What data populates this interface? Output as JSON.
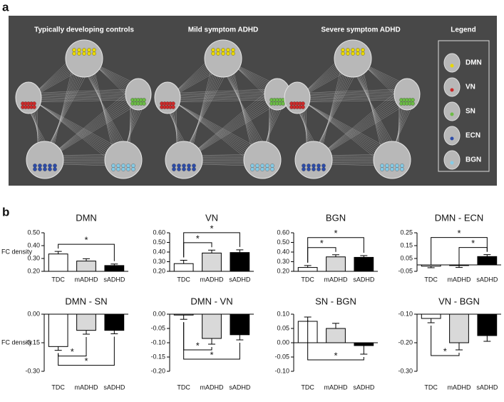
{
  "panel_a": {
    "label": "a",
    "titles": [
      "Typically developing controls",
      "Mild symptom ADHD",
      "Severe symptom ADHD"
    ],
    "legend": {
      "title": "Legend",
      "items": [
        "DMN",
        "VN",
        "SN",
        "ECN",
        "BGN"
      ]
    }
  },
  "panel_b": {
    "label": "b"
  },
  "chart_data": [
    {
      "type": "bar",
      "title": "DMN",
      "ylabel": "FC density",
      "categories": [
        "TDC",
        "mADHD",
        "sADHD"
      ],
      "values": [
        0.335,
        0.28,
        0.245
      ],
      "errors": [
        0.02,
        0.018,
        0.012
      ],
      "colors": [
        "#ffffff",
        "#d9d9d9",
        "#000000"
      ],
      "ylim": [
        0.2,
        0.5
      ],
      "yticks": [
        {
          "value": 0.2,
          "label": "0.20"
        },
        {
          "value": 0.3,
          "label": "0.30"
        },
        {
          "value": 0.4,
          "label": "0.40"
        },
        {
          "value": 0.5,
          "label": "0.50"
        }
      ],
      "significance": [
        {
          "pair": [
            0,
            2
          ],
          "label": "*"
        }
      ]
    },
    {
      "type": "bar",
      "title": "VN",
      "categories": [
        "TDC",
        "mADHD",
        "sADHD"
      ],
      "values": [
        0.28,
        0.39,
        0.395
      ],
      "errors": [
        0.035,
        0.03,
        0.028
      ],
      "colors": [
        "#ffffff",
        "#d9d9d9",
        "#000000"
      ],
      "ylim": [
        0.2,
        0.6
      ],
      "yticks": [
        {
          "value": 0.2,
          "label": "0.20"
        },
        {
          "value": 0.3,
          "label": "0.30"
        },
        {
          "value": 0.4,
          "label": "0.40"
        },
        {
          "value": 0.5,
          "label": "0.50"
        },
        {
          "value": 0.6,
          "label": "0.60"
        }
      ],
      "significance": [
        {
          "pair": [
            0,
            1
          ],
          "label": "*"
        },
        {
          "pair": [
            0,
            2
          ],
          "label": "*"
        }
      ]
    },
    {
      "type": "bar",
      "title": "BGN",
      "categories": [
        "TDC",
        "mADHD",
        "sADHD"
      ],
      "values": [
        0.24,
        0.35,
        0.345
      ],
      "errors": [
        0.02,
        0.022,
        0.018
      ],
      "colors": [
        "#ffffff",
        "#d9d9d9",
        "#000000"
      ],
      "ylim": [
        0.2,
        0.6
      ],
      "yticks": [
        {
          "value": 0.2,
          "label": "0.20"
        },
        {
          "value": 0.3,
          "label": "0.30"
        },
        {
          "value": 0.4,
          "label": "0.40"
        },
        {
          "value": 0.5,
          "label": "0.50"
        },
        {
          "value": 0.6,
          "label": "0.60"
        }
      ],
      "significance": [
        {
          "pair": [
            0,
            1
          ],
          "label": "*"
        },
        {
          "pair": [
            0,
            2
          ],
          "label": "*"
        }
      ]
    },
    {
      "type": "bar",
      "title": "DMN - ECN",
      "categories": [
        "TDC",
        "mADHD",
        "sADHD"
      ],
      "values": [
        -0.01,
        -0.005,
        0.065
      ],
      "errors": [
        0.012,
        0.015,
        0.015
      ],
      "colors": [
        "#ffffff",
        "#d9d9d9",
        "#000000"
      ],
      "ylim": [
        -0.05,
        0.25
      ],
      "yticks": [
        -0.05,
        0.05,
        0.15,
        0.25
      ],
      "significance": [
        {
          "pair": [
            1,
            2
          ],
          "label": "*"
        },
        {
          "pair": [
            0,
            2
          ],
          "label": "*"
        }
      ]
    },
    {
      "type": "bar",
      "title": "DMN - SN",
      "ylabel": "FC density",
      "categories": [
        "TDC",
        "mADHD",
        "sADHD"
      ],
      "values": [
        -0.17,
        -0.085,
        -0.085
      ],
      "errors": [
        0.02,
        0.02,
        0.018
      ],
      "colors": [
        "#ffffff",
        "#d9d9d9",
        "#000000"
      ],
      "ylim": [
        -0.3,
        0
      ],
      "yticks": [
        {
          "value": 0,
          "label": "0.00"
        },
        -0.15,
        {
          "value": -0.3,
          "label": "-0.30"
        }
      ],
      "significance": [
        {
          "pair": [
            0,
            1
          ],
          "label": "*"
        },
        {
          "pair": [
            0,
            2
          ],
          "label": "*"
        }
      ]
    },
    {
      "type": "bar",
      "title": "DMN - VN",
      "categories": [
        "TDC",
        "mADHD",
        "sADHD"
      ],
      "values": [
        -0.003,
        -0.085,
        -0.072
      ],
      "errors": [
        0.015,
        0.02,
        0.018
      ],
      "colors": [
        "#ffffff",
        "#d9d9d9",
        "#000000"
      ],
      "ylim": [
        -0.2,
        0
      ],
      "yticks": [
        {
          "value": 0,
          "label": "0.00"
        },
        -0.05,
        {
          "value": -0.1,
          "label": "-0.10"
        },
        -0.15,
        {
          "value": -0.2,
          "label": "-0.20"
        }
      ],
      "significance": [
        {
          "pair": [
            0,
            1
          ],
          "label": "*"
        },
        {
          "pair": [
            0,
            2
          ],
          "label": "*"
        }
      ]
    },
    {
      "type": "bar",
      "title": "SN - BGN",
      "categories": [
        "TDC",
        "mADHD",
        "sADHD"
      ],
      "values": [
        0.075,
        0.05,
        -0.01
      ],
      "errors": [
        0.015,
        0.018,
        0.03
      ],
      "colors": [
        "#ffffff",
        "#d9d9d9",
        "#000000"
      ],
      "ylim": [
        -0.1,
        0.1
      ],
      "yticks": [
        {
          "value": 0.1,
          "label": "0.10"
        },
        0.05,
        {
          "value": 0,
          "label": "0.00"
        },
        -0.05,
        {
          "value": -0.1,
          "label": "-0.10"
        }
      ],
      "significance": [
        {
          "pair": [
            0,
            2
          ],
          "label": "*"
        }
      ]
    },
    {
      "type": "bar",
      "title": "VN - BGN",
      "categories": [
        "TDC",
        "mADHD",
        "sADHD"
      ],
      "values": [
        -0.115,
        -0.2,
        -0.175
      ],
      "errors": [
        0.015,
        0.025,
        0.02
      ],
      "colors": [
        "#ffffff",
        "#d9d9d9",
        "#000000"
      ],
      "ylim": [
        -0.3,
        -0.1
      ],
      "yticks": [
        {
          "value": -0.1,
          "label": "-0.10"
        },
        {
          "value": -0.2,
          "label": "-0.20"
        },
        {
          "value": -0.3,
          "label": "-0.30"
        }
      ],
      "significance": [
        {
          "pair": [
            0,
            1
          ],
          "label": "*"
        }
      ]
    }
  ]
}
